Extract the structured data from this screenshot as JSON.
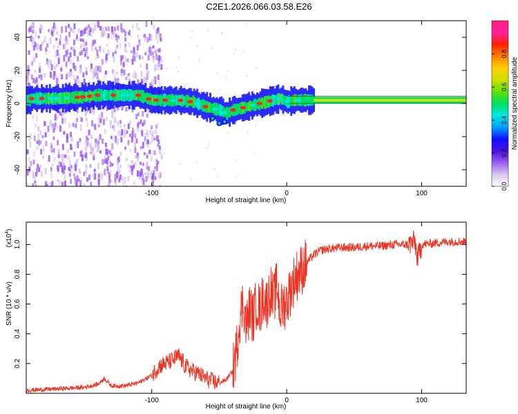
{
  "title": "C2E1.2026.066.03.58.E26",
  "colors": {
    "snr_line": "#ee3322",
    "axis": "#000000",
    "ridge_core": "#ff2020"
  },
  "chart_data": [
    {
      "type": "heatmap",
      "name": "spectrogram",
      "xlabel": "Height of straight line (km)",
      "ylabel": "Frequency (Hz)",
      "xlim": [
        -193,
        133
      ],
      "ylim": [
        -50,
        50
      ],
      "x_ticks": [
        -100,
        0,
        100
      ],
      "y_ticks": [
        -40,
        -20,
        0,
        20,
        40
      ],
      "colorbar": {
        "label": "Normalized spectral amplitude",
        "range": [
          0,
          1
        ],
        "ticks": [
          0.0,
          0.2,
          0.4,
          0.6,
          0.8
        ],
        "tick_labels": [
          "0.0",
          "0.2",
          "0.4",
          "0.6",
          "0.8"
        ],
        "colormap": [
          "#ffffff",
          "#d8c8f0",
          "#9a5cf0",
          "#4a10e0",
          "#1010ff",
          "#00a0ff",
          "#00e8e0",
          "#00e060",
          "#60e000",
          "#d0e000",
          "#ffd000",
          "#ff8000",
          "#ff2000",
          "#ff20a0",
          "#ff2080"
        ]
      },
      "ridge": {
        "x": [
          -190,
          -170,
          -150,
          -140,
          -130,
          -120,
          -110,
          -100,
          -90,
          -80,
          -70,
          -60,
          -50,
          -45,
          -40,
          -35,
          -30,
          -20,
          -10,
          -5,
          0,
          5,
          10,
          20,
          40,
          60,
          80,
          100,
          133
        ],
        "y": [
          3,
          3,
          4,
          5,
          5,
          5,
          5,
          2,
          2,
          2,
          1,
          -2,
          -4,
          -6,
          -4,
          -3,
          -2,
          0,
          2,
          3,
          1,
          2,
          2,
          2,
          2,
          2,
          2,
          2,
          2
        ]
      },
      "branch": {
        "x": [
          -55,
          -50,
          -46
        ],
        "y": [
          -9,
          -12,
          -11
        ]
      }
    },
    {
      "type": "line",
      "name": "snr",
      "xlabel": "Height of straight line (km)",
      "ylabel": "SNR (10 * v/v)",
      "y_scale_label": "(x10",
      "y_scale_exp": "4",
      "y_scale_close": ")",
      "xlim": [
        -193,
        133
      ],
      "ylim": [
        0,
        1.15
      ],
      "x_ticks": [
        -100,
        0,
        100
      ],
      "y_ticks": [
        0.2,
        0.4,
        0.6,
        0.8,
        1.0
      ],
      "series": [
        {
          "name": "SNR",
          "x": [
            -193,
            -170,
            -150,
            -140,
            -135,
            -130,
            -120,
            -110,
            -100,
            -95,
            -90,
            -85,
            -80,
            -75,
            -70,
            -65,
            -60,
            -55,
            -50,
            -45,
            -40,
            -37,
            -35,
            -32,
            -30,
            -27,
            -25,
            -22,
            -20,
            -17,
            -15,
            -12,
            -10,
            -7,
            -5,
            -2,
            0,
            3,
            5,
            8,
            10,
            15,
            20,
            25,
            30,
            40,
            50,
            60,
            70,
            80,
            90,
            95,
            97,
            100,
            110,
            120,
            133
          ],
          "y": [
            0.02,
            0.03,
            0.04,
            0.06,
            0.1,
            0.05,
            0.05,
            0.07,
            0.12,
            0.18,
            0.2,
            0.22,
            0.25,
            0.18,
            0.15,
            0.13,
            0.1,
            0.08,
            0.07,
            0.09,
            0.15,
            0.3,
            0.5,
            0.62,
            0.45,
            0.58,
            0.5,
            0.62,
            0.55,
            0.66,
            0.6,
            0.7,
            0.62,
            0.73,
            0.55,
            0.6,
            0.62,
            0.7,
            0.75,
            0.8,
            0.82,
            0.88,
            0.93,
            0.96,
            0.97,
            0.98,
            0.98,
            0.99,
            0.99,
            1.0,
            1.0,
            1.02,
            0.9,
            1.0,
            1.01,
            1.02,
            1.02
          ]
        }
      ]
    }
  ]
}
